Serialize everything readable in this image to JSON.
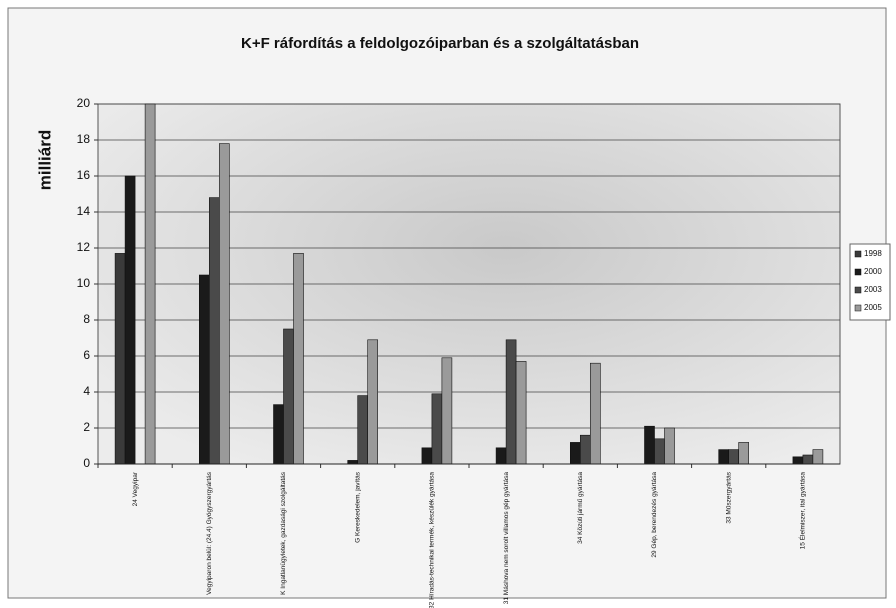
{
  "chart_data": {
    "type": "bar",
    "title": "K+F ráfordítás a feldolgozóiparban és a szolgáltatásban",
    "y_label": "milliárd",
    "categories": [
      "24 Vegyipar",
      "Vegyiparon belül: (24.4) Gyógyszergyártás",
      "K Ingatlanügyletek, gazdasági szolgáltatás",
      "G Kereskedelem, javítás",
      "32 Híradás-technikai termék, készülék gyártása",
      "31 Máshova nem sorolt villamos gép gyártása",
      "34 Közúti jármű gyártása",
      "29 Gép, berendezés gyártása",
      "33 Műszergyártás",
      "15 Élelmiszer, ital gyártása"
    ],
    "series": [
      {
        "name": "1998",
        "color": "#3a3a3a",
        "values": [
          11.7,
          null,
          null,
          null,
          null,
          null,
          null,
          null,
          null,
          null
        ]
      },
      {
        "name": "2000",
        "color": "#1a1a1a",
        "values": [
          16,
          10.5,
          3.3,
          0.2,
          0.9,
          0.9,
          1.2,
          2.1,
          0.8,
          0.4
        ]
      },
      {
        "name": "2003",
        "color": "#4a4a4a",
        "values": [
          null,
          14.8,
          7.5,
          3.8,
          3.9,
          6.9,
          1.6,
          1.4,
          0.8,
          0.5
        ]
      },
      {
        "name": "2005",
        "color": "#9a9a9a",
        "values": [
          20,
          17.8,
          11.7,
          6.9,
          5.9,
          5.7,
          5.6,
          2.0,
          1.2,
          0.8
        ]
      }
    ],
    "ylim": [
      0,
      20
    ],
    "yticks": [
      0,
      2,
      4,
      6,
      8,
      10,
      12,
      14,
      16,
      18,
      20
    ],
    "grid": true,
    "legend": "right"
  }
}
